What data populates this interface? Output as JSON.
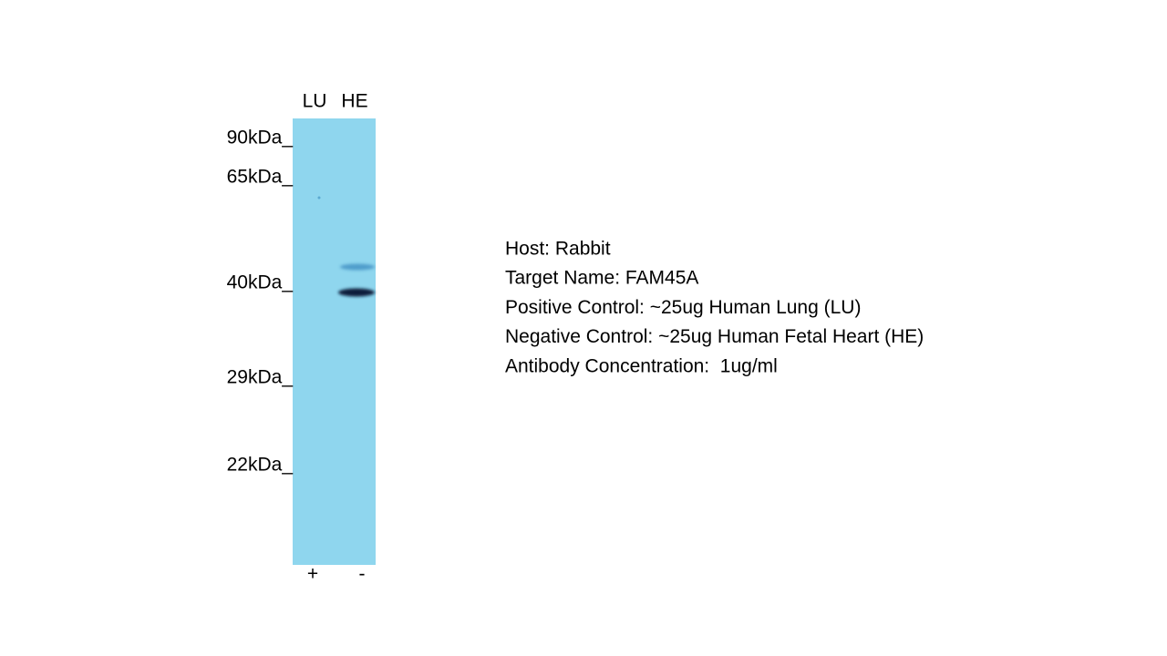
{
  "lanes": {
    "labels": [
      "LU",
      "HE"
    ],
    "signs": [
      "+",
      "-"
    ]
  },
  "markers": [
    "90kDa_",
    "65kDa_",
    "40kDa_",
    "29kDa_",
    "22kDa_"
  ],
  "info": [
    "Host: Rabbit",
    "Target Name: FAM45A",
    "Positive Control: ~25ug Human Lung (LU)",
    "Negative Control: ~25ug Human Fetal Heart (HE)",
    "Antibody Concentration:  1ug/ml"
  ]
}
